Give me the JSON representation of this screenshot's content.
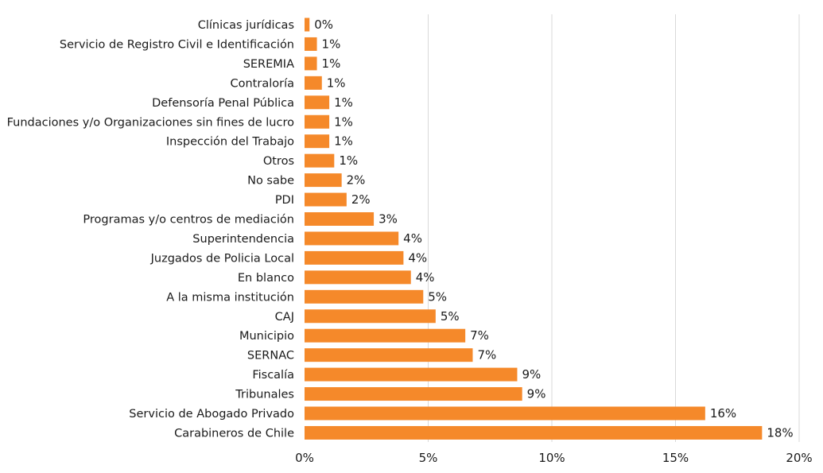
{
  "chart_data": {
    "type": "bar",
    "orientation": "horizontal",
    "title": "",
    "xlabel": "",
    "ylabel": "",
    "bar_color": "#f5892a",
    "grid": true,
    "xlim": [
      0,
      20
    ],
    "x_ticks": [
      {
        "value": 0,
        "label": "0%"
      },
      {
        "value": 5,
        "label": "5%"
      },
      {
        "value": 10,
        "label": "10%"
      },
      {
        "value": 15,
        "label": "15%"
      },
      {
        "value": 20,
        "label": "20%"
      }
    ],
    "categories": [
      "Clínicas jurídicas",
      "Servicio de Registro Civil e Identificación",
      "SEREMIA",
      "Contraloría",
      "Defensoría Penal Pública",
      "Fundaciones y/o Organizaciones sin fines de lucro",
      "Inspección del Trabajo",
      "Otros",
      "No sabe",
      "PDI",
      "Programas y/o centros de mediación",
      "Superintendencia",
      "Juzgados de Policia Local",
      "En blanco",
      "A la misma institución",
      "CAJ",
      "Municipio",
      "SERNAC",
      "Fiscalía",
      "Tribunales",
      "Servicio de Abogado Privado",
      "Carabineros de Chile"
    ],
    "values": [
      0.2,
      0.5,
      0.5,
      0.7,
      1.0,
      1.0,
      1.0,
      1.2,
      1.5,
      1.7,
      2.8,
      3.8,
      4.0,
      4.3,
      4.8,
      5.3,
      6.5,
      6.8,
      8.6,
      8.8,
      16.2,
      18.5
    ],
    "value_labels": [
      "0%",
      "1%",
      "1%",
      "1%",
      "1%",
      "1%",
      "1%",
      "1%",
      "2%",
      "2%",
      "3%",
      "4%",
      "4%",
      "4%",
      "5%",
      "5%",
      "7%",
      "7%",
      "9%",
      "9%",
      "16%",
      "18%"
    ]
  }
}
